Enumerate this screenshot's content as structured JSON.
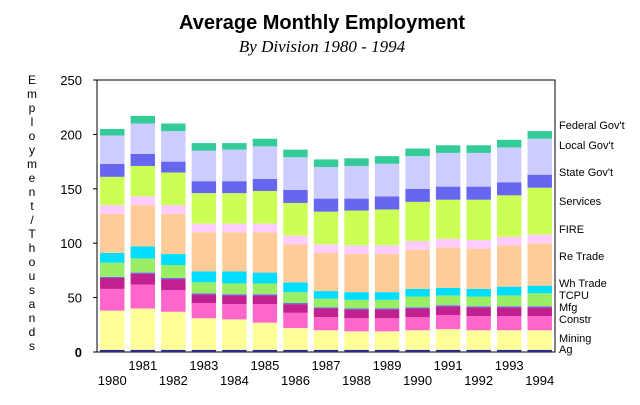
{
  "chart_data": {
    "type": "bar",
    "stacked": true,
    "title": "Average Monthly Employment",
    "subtitle": "By Division 1980 - 1994",
    "ylabel": "Employment/Thousands",
    "xlabel": "",
    "ylim": [
      0,
      250
    ],
    "yticks": [
      "0",
      "50",
      "100",
      "150",
      "200",
      "250"
    ],
    "grid": false,
    "legend_placement": "right",
    "categories": [
      "1980",
      "1981",
      "1982",
      "1983",
      "1984",
      "1985",
      "1986",
      "1987",
      "1988",
      "1989",
      "1990",
      "1991",
      "1992",
      "1993",
      "1994"
    ],
    "series": [
      {
        "name": "Ag",
        "color": "#2b2b8c",
        "values": [
          2,
          2,
          2,
          2,
          2,
          2,
          2,
          2,
          2,
          2,
          2,
          2,
          2,
          2,
          2
        ]
      },
      {
        "name": "Mining",
        "color": "#ffff9a",
        "values": [
          36,
          38,
          35,
          29,
          28,
          25,
          20,
          18,
          17,
          17,
          18,
          19,
          18,
          18,
          18
        ]
      },
      {
        "name": "Constr",
        "color": "#ff66cc",
        "values": [
          20,
          22,
          20,
          14,
          14,
          17,
          14,
          12,
          12,
          12,
          12,
          13,
          13,
          13,
          13
        ]
      },
      {
        "name": "Mfg",
        "color": "#c02090",
        "values": [
          10,
          10,
          10,
          8,
          8,
          8,
          8,
          8,
          8,
          8,
          8,
          8,
          8,
          8,
          8
        ]
      },
      {
        "name": "TCPU",
        "color": "#6666ee",
        "values": [
          1,
          1,
          1,
          1,
          1,
          1,
          1,
          1,
          1,
          1,
          1,
          1,
          1,
          1,
          1
        ]
      },
      {
        "name": "Wh Trade",
        "color": "#99ee66",
        "values": [
          13,
          13,
          12,
          10,
          10,
          10,
          10,
          8,
          8,
          8,
          10,
          9,
          9,
          10,
          12
        ]
      },
      {
        "name": "Re Trade",
        "color": "#00ddff",
        "values": [
          9,
          11,
          10,
          10,
          11,
          10,
          9,
          7,
          7,
          7,
          7,
          7,
          7,
          8,
          7
        ]
      },
      {
        "name": "FIRE",
        "color": "#ffcc99",
        "values": [
          36,
          38,
          37,
          36,
          36,
          37,
          35,
          35,
          35,
          35,
          36,
          37,
          37,
          38,
          39
        ]
      },
      {
        "name": "Services",
        "color": "#ffccff",
        "values": [
          8,
          8,
          8,
          8,
          8,
          8,
          8,
          8,
          8,
          8,
          8,
          8,
          8,
          8,
          8
        ]
      },
      {
        "name": "State Gov't",
        "color": "#ccff55",
        "values": [
          26,
          28,
          30,
          28,
          28,
          30,
          30,
          30,
          32,
          33,
          36,
          36,
          37,
          38,
          43
        ]
      },
      {
        "name": "Local Gov't",
        "color": "#6666ee",
        "values": [
          12,
          11,
          10,
          11,
          11,
          11,
          12,
          12,
          11,
          12,
          12,
          12,
          12,
          12,
          12
        ]
      },
      {
        "name": "Federal Gov't",
        "color": "#ccccff",
        "values": [
          26,
          28,
          28,
          28,
          29,
          30,
          30,
          29,
          30,
          30,
          30,
          31,
          31,
          32,
          33
        ]
      },
      {
        "name": "",
        "color": "#33cc99",
        "values": [
          6,
          7,
          7,
          7,
          6,
          7,
          7,
          7,
          7,
          7,
          7,
          7,
          7,
          7,
          7
        ]
      }
    ],
    "legend_labels": [
      "Federal Gov't",
      "Local Gov't",
      "State Gov't",
      "Services",
      "FIRE",
      "Re Trade",
      "Wh Trade",
      "TCPU",
      "Mfg",
      "Constr",
      "Mining",
      "Ag"
    ]
  }
}
